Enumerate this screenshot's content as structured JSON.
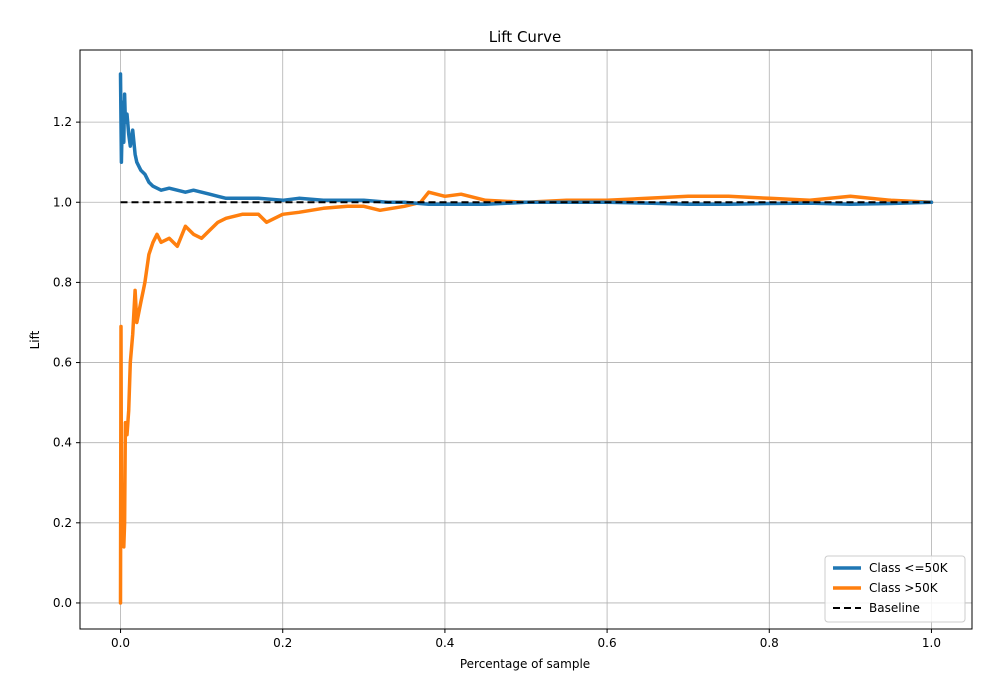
{
  "chart_data": {
    "type": "line",
    "title": "Lift Curve",
    "xlabel": "Percentage of sample",
    "ylabel": "Lift",
    "xlim": [
      -0.05,
      1.05
    ],
    "ylim": [
      -0.065,
      1.38
    ],
    "xticks": [
      0.0,
      0.2,
      0.4,
      0.6,
      0.8,
      1.0
    ],
    "xtick_labels": [
      "0.0",
      "0.2",
      "0.4",
      "0.6",
      "0.8",
      "1.0"
    ],
    "yticks": [
      0.0,
      0.2,
      0.4,
      0.6,
      0.8,
      1.0,
      1.2
    ],
    "ytick_labels": [
      "0.0",
      "0.2",
      "0.4",
      "0.6",
      "0.8",
      "1.0",
      "1.2"
    ],
    "grid": true,
    "legend_position": "lower-right",
    "series": [
      {
        "name": "Class <=50K",
        "color": "#1f77b4",
        "style": "solid",
        "x": [
          0.0,
          0.001,
          0.002,
          0.003,
          0.004,
          0.005,
          0.006,
          0.008,
          0.01,
          0.012,
          0.015,
          0.018,
          0.02,
          0.025,
          0.03,
          0.035,
          0.04,
          0.05,
          0.06,
          0.07,
          0.08,
          0.09,
          0.1,
          0.11,
          0.12,
          0.13,
          0.15,
          0.17,
          0.2,
          0.22,
          0.25,
          0.28,
          0.3,
          0.33,
          0.35,
          0.38,
          0.4,
          0.45,
          0.5,
          0.55,
          0.6,
          0.65,
          0.7,
          0.75,
          0.8,
          0.85,
          0.9,
          0.95,
          1.0
        ],
        "y": [
          1.32,
          1.1,
          1.2,
          1.25,
          1.15,
          1.27,
          1.2,
          1.22,
          1.17,
          1.14,
          1.18,
          1.12,
          1.1,
          1.08,
          1.07,
          1.05,
          1.04,
          1.03,
          1.035,
          1.03,
          1.025,
          1.03,
          1.025,
          1.02,
          1.015,
          1.01,
          1.01,
          1.01,
          1.005,
          1.01,
          1.005,
          1.005,
          1.005,
          1.0,
          1.0,
          0.995,
          0.995,
          0.995,
          1.0,
          1.0,
          1.0,
          0.998,
          0.995,
          0.995,
          0.997,
          0.998,
          0.995,
          0.997,
          1.0
        ]
      },
      {
        "name": "Class >50K",
        "color": "#ff7f0e",
        "style": "solid",
        "x": [
          0.0,
          0.0005,
          0.001,
          0.002,
          0.003,
          0.004,
          0.005,
          0.006,
          0.008,
          0.01,
          0.012,
          0.015,
          0.018,
          0.02,
          0.022,
          0.025,
          0.028,
          0.03,
          0.035,
          0.04,
          0.045,
          0.05,
          0.06,
          0.07,
          0.08,
          0.09,
          0.1,
          0.11,
          0.12,
          0.13,
          0.15,
          0.17,
          0.18,
          0.2,
          0.22,
          0.25,
          0.28,
          0.3,
          0.32,
          0.35,
          0.37,
          0.38,
          0.4,
          0.42,
          0.45,
          0.5,
          0.55,
          0.6,
          0.65,
          0.7,
          0.75,
          0.8,
          0.85,
          0.9,
          0.95,
          1.0
        ],
        "y": [
          0.0,
          0.69,
          0.3,
          0.15,
          0.28,
          0.14,
          0.2,
          0.45,
          0.42,
          0.48,
          0.6,
          0.67,
          0.78,
          0.7,
          0.72,
          0.75,
          0.78,
          0.8,
          0.87,
          0.9,
          0.92,
          0.9,
          0.91,
          0.89,
          0.94,
          0.92,
          0.91,
          0.93,
          0.95,
          0.96,
          0.97,
          0.97,
          0.95,
          0.97,
          0.975,
          0.985,
          0.99,
          0.99,
          0.98,
          0.99,
          1.0,
          1.025,
          1.015,
          1.02,
          1.005,
          1.0,
          1.005,
          1.005,
          1.01,
          1.015,
          1.015,
          1.01,
          1.005,
          1.015,
          1.005,
          1.0
        ]
      },
      {
        "name": "Baseline",
        "color": "#000000",
        "style": "dashed",
        "x": [
          0.0,
          1.0
        ],
        "y": [
          1.0,
          1.0
        ]
      }
    ]
  }
}
